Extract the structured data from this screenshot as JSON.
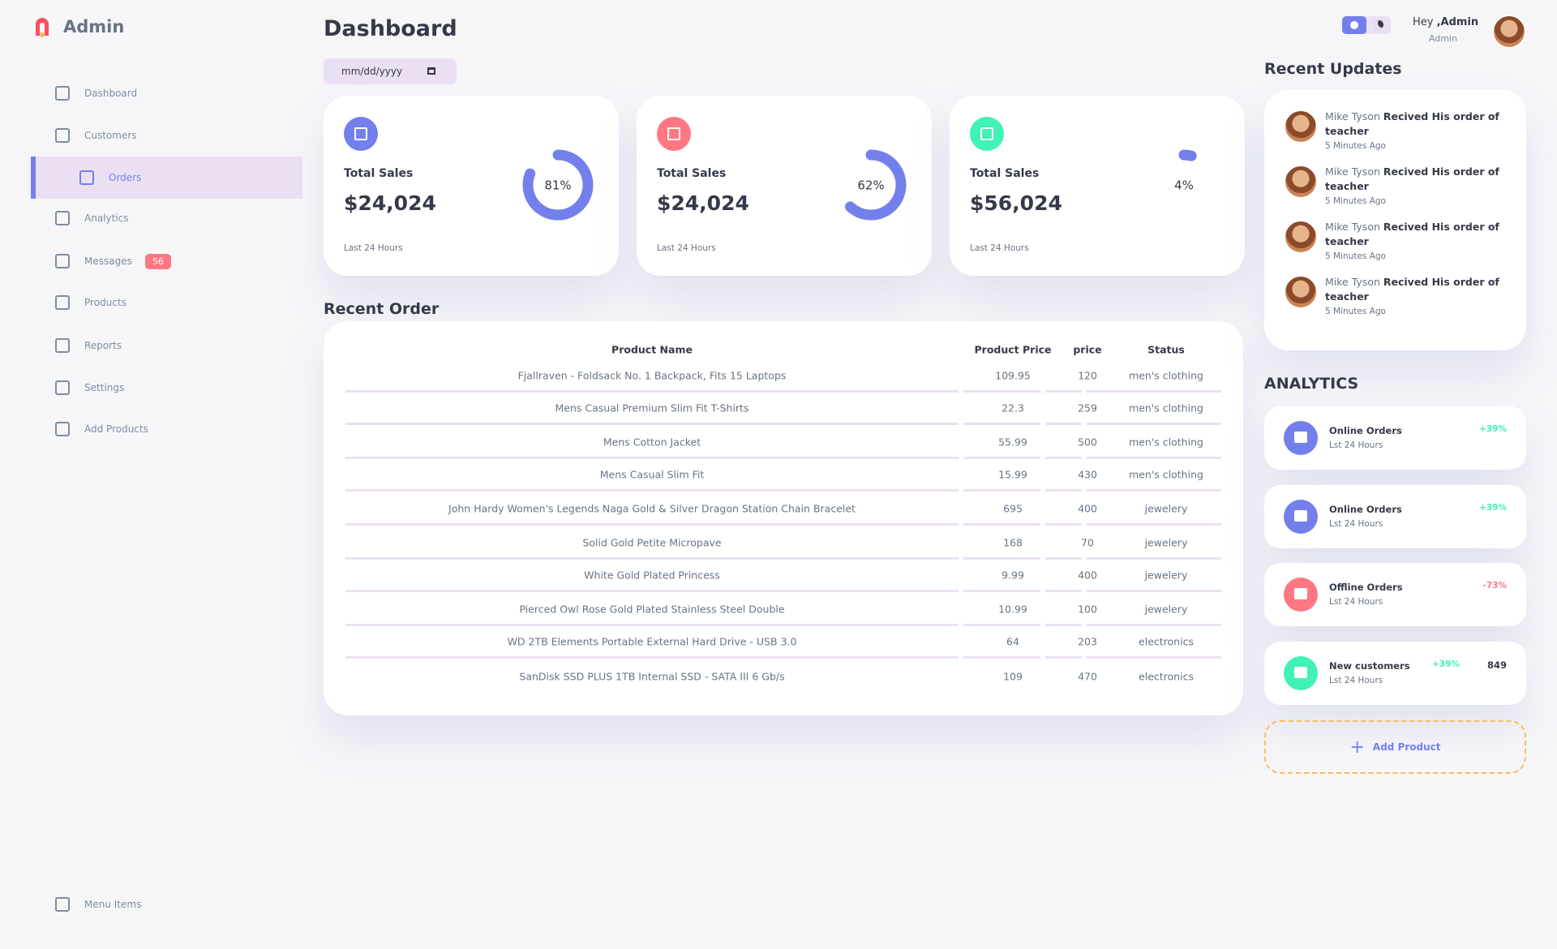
{
  "sidebar": {
    "brand": "Admin",
    "menu": [
      {
        "label": "Dashboard"
      },
      {
        "label": "Customers"
      },
      {
        "label": "Orders",
        "active": true
      },
      {
        "label": "Analytics"
      },
      {
        "label": "Messages",
        "badge": "56"
      },
      {
        "label": "Products"
      },
      {
        "label": "Reports"
      },
      {
        "label": "Settings"
      },
      {
        "label": "Add Products"
      }
    ],
    "footer": "Menu Items"
  },
  "header": {
    "title": "Dashboard",
    "date_placeholder": "mm/dd/yyyy",
    "greeting": "Hey",
    "user": ",Admin",
    "role": "Admin"
  },
  "cards": [
    {
      "title": "Total Sales",
      "amount": "$24,024",
      "percent": "81%",
      "note": "Last 24 Hours",
      "color": "#7380ec"
    },
    {
      "title": "Total Sales",
      "amount": "$24,024",
      "percent": "62%",
      "note": "Last 24 Hours",
      "color": "#ff7782"
    },
    {
      "title": "Total Sales",
      "amount": "$56,024",
      "percent": "4%",
      "note": "Last 24 Hours",
      "color": "#41f1b6"
    }
  ],
  "recent_order": {
    "title": "Recent Order",
    "columns": [
      "Product Name",
      "Product Price",
      "price",
      "Status"
    ],
    "rows": [
      [
        "Fjallraven - Foldsack No. 1 Backpack, Fits 15 Laptops",
        109.95,
        120,
        "men's clothing"
      ],
      [
        "Mens Casual Premium Slim Fit T-Shirts",
        22.3,
        259,
        "men's clothing"
      ],
      [
        "Mens Cotton Jacket",
        55.99,
        500,
        "men's clothing"
      ],
      [
        "Mens Casual Slim Fit",
        15.99,
        430,
        "men's clothing"
      ],
      [
        "John Hardy Women's Legends Naga Gold & Silver Dragon Station Chain Bracelet",
        695,
        400,
        "jewelery"
      ],
      [
        "Solid Gold Petite Micropave",
        168,
        70,
        "jewelery"
      ],
      [
        "White Gold Plated Princess",
        9.99,
        400,
        "jewelery"
      ],
      [
        "Pierced Owl Rose Gold Plated Stainless Steel Double",
        10.99,
        100,
        "jewelery"
      ],
      [
        "WD 2TB Elements Portable External Hard Drive - USB 3.0",
        64,
        203,
        "electronics"
      ],
      [
        "SanDisk SSD PLUS 1TB Internal SSD - SATA III 6 Gb/s",
        109,
        470,
        "electronics"
      ]
    ]
  },
  "recent_updates": {
    "title": "Recent Updates",
    "items": [
      {
        "name": "Mike Tyson",
        "action": "Recived His order of teacher",
        "time": "5 Minutes Ago"
      },
      {
        "name": "Mike Tyson",
        "action": "Recived His order of teacher",
        "time": "5 Minutes Ago"
      },
      {
        "name": "Mike Tyson",
        "action": "Recived His order of teacher",
        "time": "5 Minutes Ago"
      },
      {
        "name": "Mike Tyson",
        "action": "Recived His order of teacher",
        "time": "5 Minutes Ago"
      }
    ]
  },
  "analytics": {
    "title": "ANALYTICS",
    "items": [
      {
        "title": "Online Orders",
        "subtitle": "Lst 24 Hours",
        "change": "+39%",
        "color": "#7380ec"
      },
      {
        "title": "Online Orders",
        "subtitle": "Lst 24 Hours",
        "change": "+39%",
        "color": "#7380ec"
      },
      {
        "title": "Offline Orders",
        "subtitle": "Lst 24 Hours",
        "change": "-73%",
        "color": "#ff7782"
      },
      {
        "title": "New customers",
        "subtitle": "Lst 24 Hours",
        "change": "+39%",
        "count": "849",
        "color": "#41f1b6"
      }
    ],
    "add": "Add Product"
  }
}
